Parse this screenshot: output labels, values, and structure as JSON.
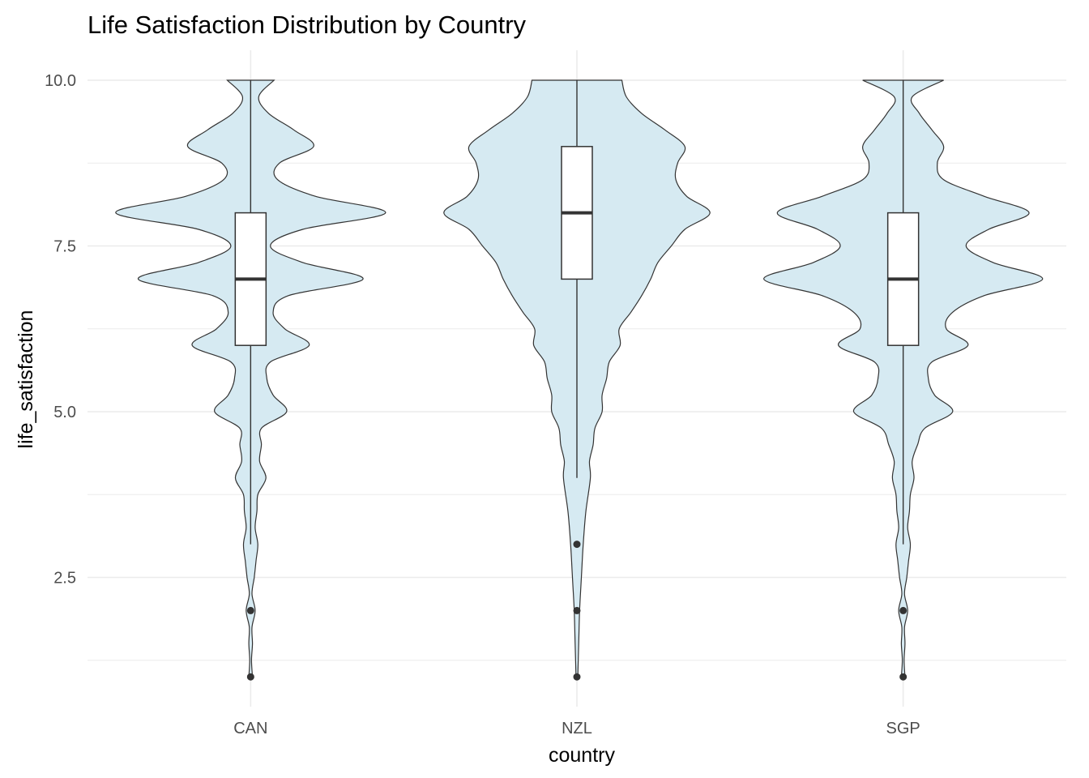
{
  "chart_data": {
    "type": "violin",
    "title": "Life Satisfaction Distribution by Country",
    "xlabel": "country",
    "ylabel": "life_satisfaction",
    "categories": [
      "CAN",
      "NZL",
      "SGP"
    ],
    "ylim": [
      0.8,
      10.2
    ],
    "y_ticks": [
      2.5,
      5.0,
      7.5,
      10.0
    ],
    "y_tick_labels": [
      "2.5",
      "5.0",
      "7.5",
      "10.0"
    ],
    "grid": true,
    "violin_fill": "#d6eaf2",
    "line_color": "#333333",
    "violins": [
      {
        "category": "CAN",
        "density": [
          [
            1,
            0.02
          ],
          [
            1.25,
            0.01
          ],
          [
            1.5,
            0.02
          ],
          [
            1.75,
            0.015
          ],
          [
            2,
            0.05
          ],
          [
            2.25,
            0.015
          ],
          [
            2.5,
            0.04
          ],
          [
            2.75,
            0.06
          ],
          [
            3,
            0.08
          ],
          [
            3.25,
            0.05
          ],
          [
            3.5,
            0.07
          ],
          [
            3.75,
            0.08
          ],
          [
            4,
            0.17
          ],
          [
            4.25,
            0.1
          ],
          [
            4.5,
            0.12
          ],
          [
            4.75,
            0.12
          ],
          [
            5,
            0.4
          ],
          [
            5.25,
            0.25
          ],
          [
            5.5,
            0.18
          ],
          [
            5.75,
            0.22
          ],
          [
            6,
            0.65
          ],
          [
            6.25,
            0.38
          ],
          [
            6.5,
            0.25
          ],
          [
            6.75,
            0.42
          ],
          [
            7,
            1.25
          ],
          [
            7.25,
            0.58
          ],
          [
            7.5,
            0.22
          ],
          [
            7.75,
            0.58
          ],
          [
            8,
            1.5
          ],
          [
            8.25,
            0.72
          ],
          [
            8.5,
            0.3
          ],
          [
            8.75,
            0.32
          ],
          [
            9,
            0.7
          ],
          [
            9.25,
            0.48
          ],
          [
            9.5,
            0.2
          ],
          [
            9.75,
            0.09
          ],
          [
            10,
            0.26
          ]
        ],
        "box": {
          "q1": 6,
          "median": 7,
          "q3": 8,
          "whisker_low": 3,
          "whisker_high": 10
        },
        "outliers": [
          2,
          1
        ]
      },
      {
        "category": "NZL",
        "density": [
          [
            1,
            0.01
          ],
          [
            1.5,
            0.02
          ],
          [
            2,
            0.03
          ],
          [
            2.5,
            0.05
          ],
          [
            3,
            0.07
          ],
          [
            3.5,
            0.1
          ],
          [
            4,
            0.15
          ],
          [
            4.25,
            0.14
          ],
          [
            4.5,
            0.18
          ],
          [
            4.75,
            0.2
          ],
          [
            5,
            0.28
          ],
          [
            5.25,
            0.28
          ],
          [
            5.5,
            0.33
          ],
          [
            5.75,
            0.36
          ],
          [
            6,
            0.48
          ],
          [
            6.25,
            0.47
          ],
          [
            6.5,
            0.6
          ],
          [
            6.75,
            0.72
          ],
          [
            7,
            0.82
          ],
          [
            7.25,
            0.9
          ],
          [
            7.5,
            1.05
          ],
          [
            7.75,
            1.2
          ],
          [
            8,
            1.48
          ],
          [
            8.25,
            1.22
          ],
          [
            8.5,
            1.1
          ],
          [
            8.75,
            1.12
          ],
          [
            9,
            1.2
          ],
          [
            9.25,
            0.98
          ],
          [
            9.5,
            0.72
          ],
          [
            9.75,
            0.55
          ],
          [
            10,
            0.5
          ]
        ],
        "box": {
          "q1": 7,
          "median": 8,
          "q3": 9,
          "whisker_low": 4,
          "whisker_high": 10
        },
        "outliers": [
          3,
          2,
          1
        ]
      },
      {
        "category": "SGP",
        "density": [
          [
            1,
            0.02
          ],
          [
            1.25,
            0.01
          ],
          [
            1.5,
            0.02
          ],
          [
            1.75,
            0.015
          ],
          [
            2,
            0.05
          ],
          [
            2.25,
            0.015
          ],
          [
            2.5,
            0.04
          ],
          [
            2.75,
            0.06
          ],
          [
            3,
            0.08
          ],
          [
            3.25,
            0.05
          ],
          [
            3.5,
            0.07
          ],
          [
            3.75,
            0.08
          ],
          [
            4,
            0.12
          ],
          [
            4.25,
            0.1
          ],
          [
            4.5,
            0.16
          ],
          [
            4.75,
            0.24
          ],
          [
            5,
            0.55
          ],
          [
            5.25,
            0.35
          ],
          [
            5.5,
            0.28
          ],
          [
            5.75,
            0.32
          ],
          [
            6,
            0.72
          ],
          [
            6.25,
            0.48
          ],
          [
            6.5,
            0.55
          ],
          [
            6.75,
            0.9
          ],
          [
            7,
            1.55
          ],
          [
            7.25,
            1.0
          ],
          [
            7.5,
            0.7
          ],
          [
            7.75,
            0.95
          ],
          [
            8,
            1.4
          ],
          [
            8.25,
            0.9
          ],
          [
            8.5,
            0.45
          ],
          [
            8.75,
            0.38
          ],
          [
            9,
            0.45
          ],
          [
            9.25,
            0.32
          ],
          [
            9.5,
            0.18
          ],
          [
            9.75,
            0.1
          ],
          [
            10,
            0.45
          ]
        ],
        "box": {
          "q1": 6,
          "median": 7,
          "q3": 8,
          "whisker_low": 3,
          "whisker_high": 10
        },
        "outliers": [
          2,
          1
        ]
      }
    ]
  }
}
